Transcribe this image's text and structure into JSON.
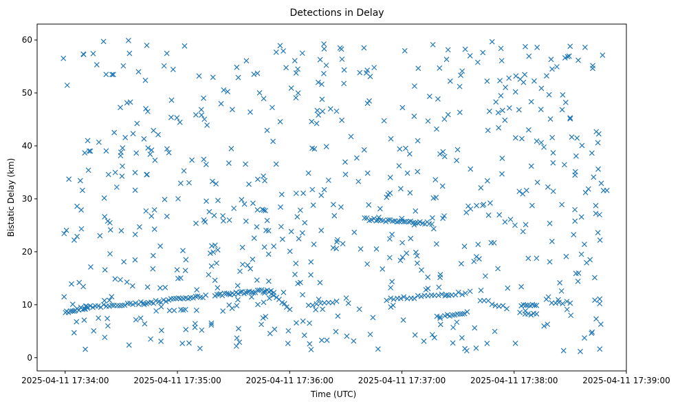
{
  "chart_data": {
    "type": "scatter",
    "title": "Detections in Delay",
    "xlabel": "Time (UTC)",
    "ylabel": "Bistatic Delay (km)",
    "marker": "x",
    "color": "#1f77b4",
    "grid": false,
    "legend": "none",
    "xlim": [
      "2025-04-11 17:33:45",
      "2025-04-11 17:39:00"
    ],
    "ylim": [
      -2.5,
      63
    ],
    "x_ticks": [
      "2025-04-11 17:34:00",
      "2025-04-11 17:35:00",
      "2025-04-11 17:36:00",
      "2025-04-11 17:37:00",
      "2025-04-11 17:38:00",
      "2025-04-11 17:39:00"
    ],
    "y_ticks": [
      0,
      10,
      20,
      30,
      40,
      50,
      60
    ],
    "series": [
      {
        "tracks": [
          {
            "start": [
              "2025-04-11 17:34:00",
              8.5
            ],
            "end": [
              "2025-04-11 17:34:12",
              9.6
            ],
            "count": 14
          },
          {
            "start": [
              "2025-04-11 17:34:12",
              9.6
            ],
            "end": [
              "2025-04-11 17:34:42",
              10.3
            ],
            "count": 22
          },
          {
            "start": [
              "2025-04-11 17:34:42",
              10.3
            ],
            "end": [
              "2025-04-11 17:35:15",
              11.6
            ],
            "count": 26
          },
          {
            "start": [
              "2025-04-11 17:35:20",
              11.8
            ],
            "end": [
              "2025-04-11 17:35:50",
              12.7
            ],
            "count": 30
          },
          {
            "start": [
              "2025-04-11 17:35:50",
              12.0
            ],
            "end": [
              "2025-04-11 17:36:00",
              9.3
            ],
            "count": 8
          },
          {
            "start": [
              "2025-04-11 17:36:10",
              9.8
            ],
            "end": [
              "2025-04-11 17:36:25",
              10.6
            ],
            "count": 8
          },
          {
            "start": [
              "2025-04-11 17:36:40",
              26.2
            ],
            "end": [
              "2025-04-11 17:37:16",
              25.4
            ],
            "count": 30
          },
          {
            "start": [
              "2025-04-11 17:36:52",
              11.0
            ],
            "end": [
              "2025-04-11 17:37:34",
              12.2
            ],
            "count": 24
          },
          {
            "start": [
              "2025-04-11 17:37:23",
              8.0
            ],
            "end": [
              "2025-04-11 17:37:35",
              8.5
            ],
            "count": 10
          },
          {
            "start": [
              "2025-04-11 17:37:42",
              11.0
            ],
            "end": [
              "2025-04-11 17:37:56",
              9.4
            ],
            "count": 8
          },
          {
            "start": [
              "2025-04-11 17:38:04",
              9.9
            ],
            "end": [
              "2025-04-11 17:38:12",
              9.8
            ],
            "count": 8
          },
          {
            "start": [
              "2025-04-11 17:38:06",
              8.3
            ],
            "end": [
              "2025-04-11 17:38:12",
              8.2
            ],
            "count": 5
          },
          {
            "start": [
              "2025-04-11 17:38:20",
              10.2
            ],
            "end": [
              "2025-04-11 17:38:30",
              10.4
            ],
            "count": 6
          }
        ],
        "scatter": {
          "x_range": [
            "2025-04-11 17:33:59",
            "2025-04-11 17:38:50"
          ],
          "y_range": [
            1,
            60
          ],
          "count": 640
        }
      }
    ]
  }
}
